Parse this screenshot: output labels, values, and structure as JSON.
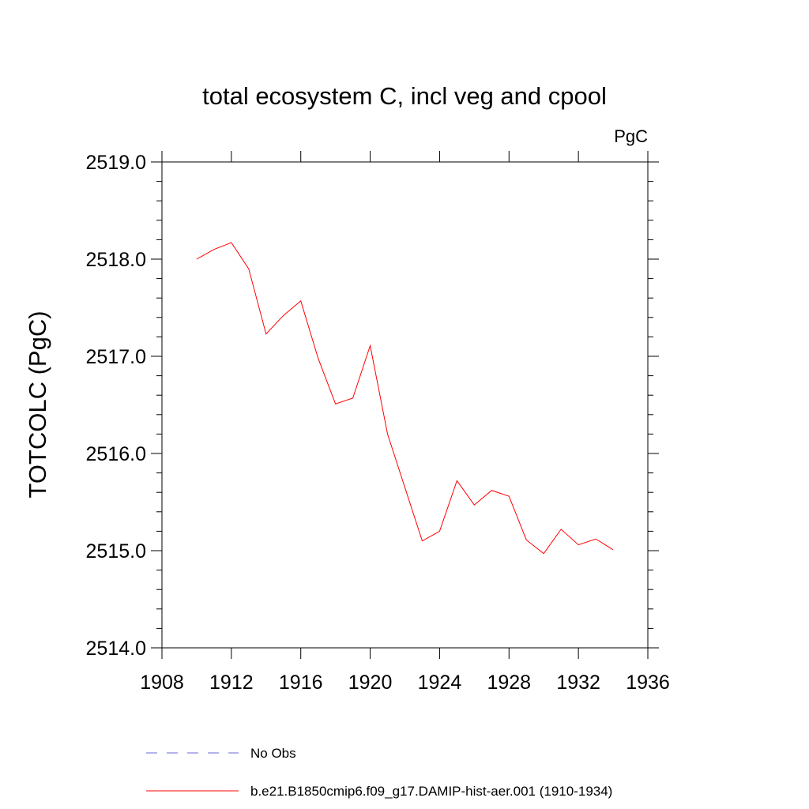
{
  "chart_data": {
    "type": "line",
    "title": "total ecosystem C, incl veg and cpool",
    "units_label": "PgC",
    "ylabel": "TOTCOLC  (PgC)",
    "xlabel": "",
    "xlim": [
      1908,
      1936
    ],
    "ylim": [
      2514.0,
      2519.0
    ],
    "x_ticks": [
      1908,
      1912,
      1916,
      1920,
      1924,
      1928,
      1932,
      1936
    ],
    "x_tick_labels": [
      "1908",
      "1912",
      "1916",
      "1920",
      "1924",
      "1928",
      "1932",
      "1936"
    ],
    "y_ticks": [
      2514.0,
      2515.0,
      2516.0,
      2517.0,
      2518.0,
      2519.0
    ],
    "y_tick_labels": [
      "2514.0",
      "2515.0",
      "2516.0",
      "2517.0",
      "2518.0",
      "2519.0"
    ],
    "grid": false,
    "legend_position": "bottom",
    "series": [
      {
        "name": "No Obs",
        "style": "dashed",
        "color": "#6a6ad8",
        "x": [],
        "values": []
      },
      {
        "name": "b.e21.B1850cmip6.f09_g17.DAMIP-hist-aer.001 (1910-1934)",
        "style": "solid",
        "color": "#ff0000",
        "x": [
          1910,
          1911,
          1912,
          1913,
          1914,
          1915,
          1916,
          1917,
          1918,
          1919,
          1920,
          1921,
          1922,
          1923,
          1924,
          1925,
          1926,
          1927,
          1928,
          1929,
          1930,
          1931,
          1932,
          1933,
          1934
        ],
        "values": [
          2518.0,
          2518.1,
          2518.17,
          2517.9,
          2517.23,
          2517.42,
          2517.57,
          2516.98,
          2516.51,
          2516.57,
          2517.11,
          2516.2,
          2515.65,
          2515.1,
          2515.2,
          2515.72,
          2515.47,
          2515.62,
          2515.56,
          2515.11,
          2514.97,
          2515.22,
          2515.06,
          2515.12,
          2515.01
        ]
      }
    ]
  }
}
